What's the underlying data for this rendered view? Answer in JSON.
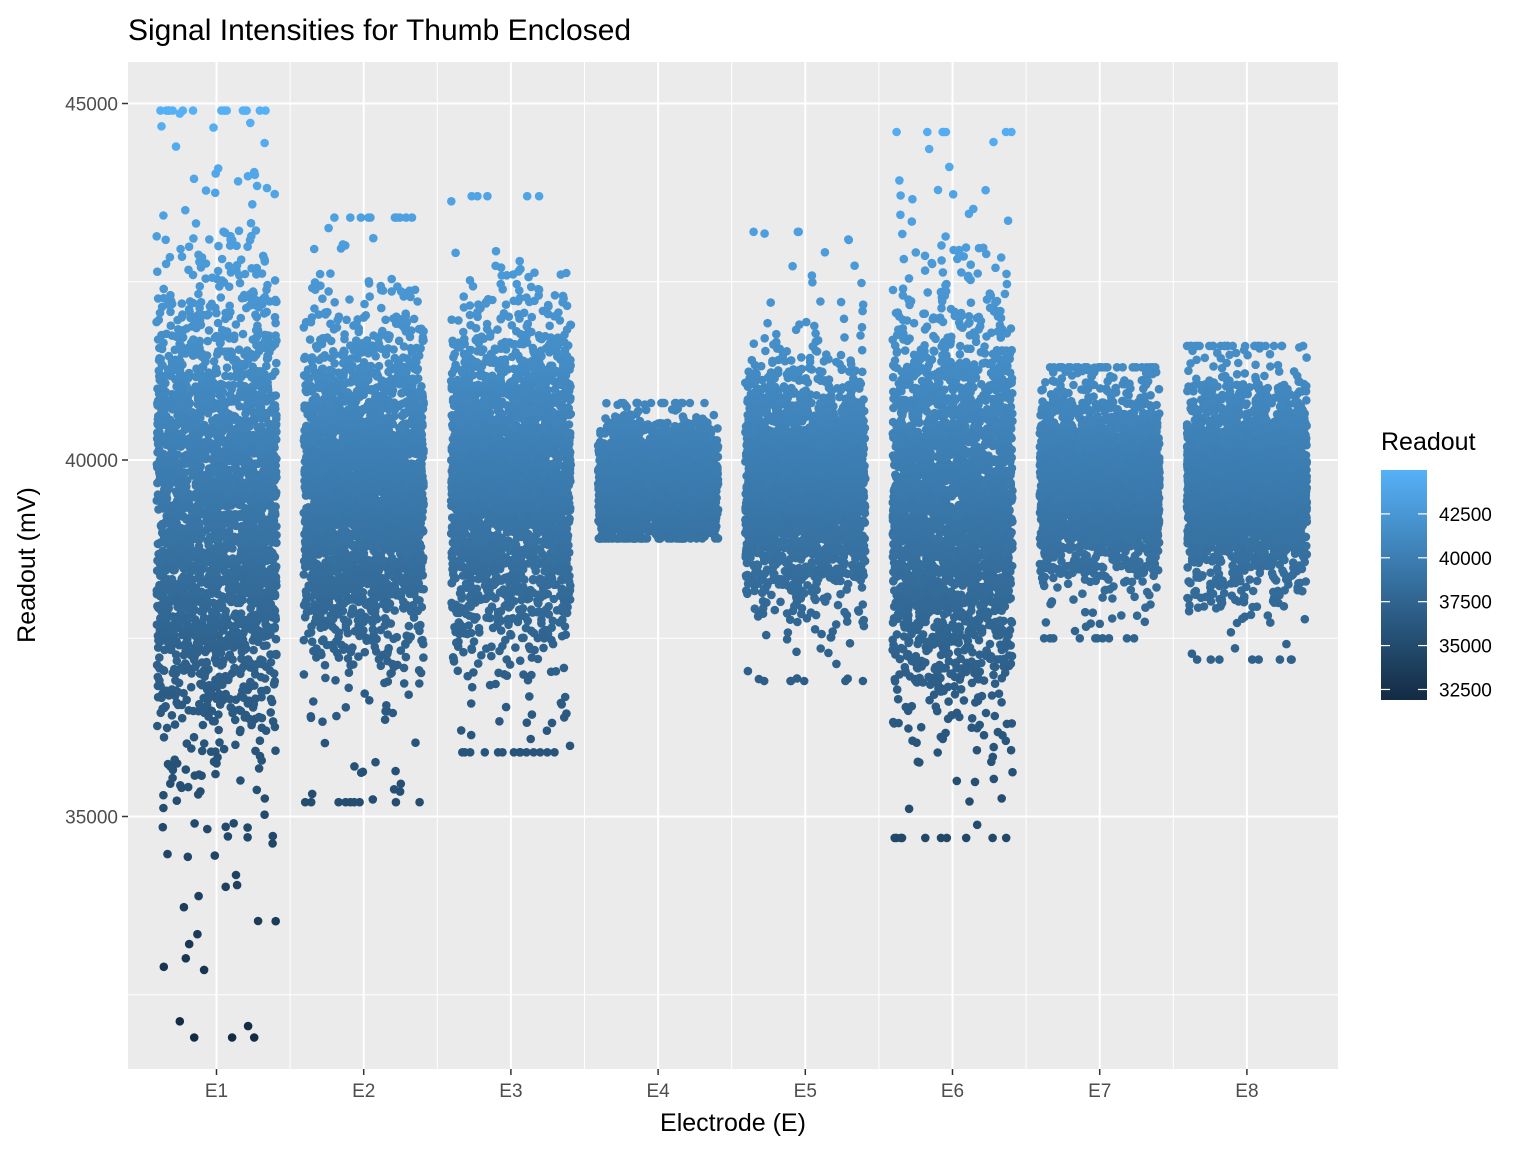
{
  "chart_data": {
    "type": "scatter",
    "variant": "jitter strip plot",
    "title": "Signal Intensities for Thumb Enclosed",
    "xlabel": "Electrode (E)",
    "ylabel": "Readout (mV)",
    "categories": [
      "E1",
      "E2",
      "E3",
      "E4",
      "E5",
      "E6",
      "E7",
      "E8"
    ],
    "ylim": [
      31800,
      45800
    ],
    "yticks": [
      35000,
      40000,
      45000
    ],
    "grid": true,
    "legend": {
      "title": "Readout",
      "position": "right",
      "type": "color gradient",
      "ticks": [
        32500,
        35000,
        37500,
        40000,
        42500
      ],
      "range": [
        31900,
        45000
      ],
      "low_color": "#132B43",
      "high_color": "#56B1F7"
    },
    "series": [
      {
        "category": "E1",
        "median": 39300,
        "q1": 38300,
        "q3": 40400,
        "min": 31900,
        "max": 44900
      },
      {
        "category": "E2",
        "median": 39600,
        "q1": 38900,
        "q3": 40400,
        "min": 35200,
        "max": 43400
      },
      {
        "category": "E3",
        "median": 39700,
        "q1": 39000,
        "q3": 40400,
        "min": 35900,
        "max": 43700
      },
      {
        "category": "E4",
        "median": 39700,
        "q1": 39500,
        "q3": 40000,
        "min": 38900,
        "max": 40800
      },
      {
        "category": "E5",
        "median": 39700,
        "q1": 39200,
        "q3": 40200,
        "min": 36900,
        "max": 43200
      },
      {
        "category": "E6",
        "median": 39400,
        "q1": 38500,
        "q3": 40300,
        "min": 34700,
        "max": 44600
      },
      {
        "category": "E7",
        "median": 39700,
        "q1": 39300,
        "q3": 40100,
        "min": 37500,
        "max": 41300
      },
      {
        "category": "E8",
        "median": 39700,
        "q1": 39300,
        "q3": 40200,
        "min": 37200,
        "max": 41600
      }
    ]
  }
}
